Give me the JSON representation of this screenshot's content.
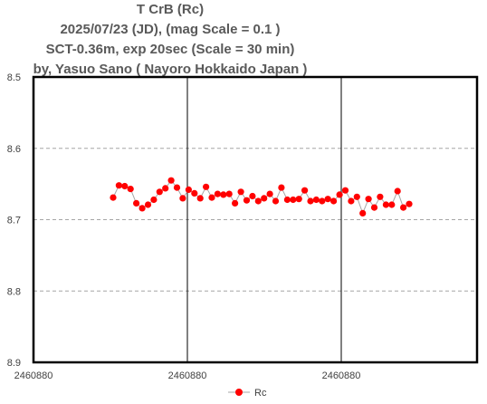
{
  "header": {
    "line1": "T CrB  (Rc)",
    "line2": "2025/07/23 (JD),   (mag Scale = 0.1 )",
    "line3": "SCT-0.36m, exp 20sec (Scale = 30 min)",
    "line4": "by, Yasuo Sano ( Nayoro Hokkaido Japan )"
  },
  "chart_data": {
    "type": "line",
    "title": "T CrB  (Rc)",
    "xlabel": "",
    "ylabel": "",
    "y_inverted": true,
    "ylim": [
      8.5,
      8.9
    ],
    "y_ticks": [
      "8.5",
      "8.6",
      "8.7",
      "8.8",
      "8.9"
    ],
    "x_ticks": [
      "2460880",
      "2460880",
      "2460880"
    ],
    "grid": true,
    "legend_position": "bottom",
    "marker_color": "#ff0000",
    "line_color": "#a6a6a6",
    "series": [
      {
        "name": "Rc",
        "y": [
          8.669,
          8.652,
          8.653,
          8.657,
          8.677,
          8.684,
          8.679,
          8.672,
          8.661,
          8.656,
          8.645,
          8.655,
          8.67,
          8.658,
          8.663,
          8.67,
          8.654,
          8.669,
          8.664,
          8.665,
          8.664,
          8.677,
          8.661,
          8.673,
          8.667,
          8.674,
          8.67,
          8.664,
          8.674,
          8.655,
          8.672,
          8.672,
          8.671,
          8.659,
          8.674,
          8.672,
          8.674,
          8.671,
          8.674,
          8.665,
          8.659,
          8.674,
          8.668,
          8.691,
          8.671,
          8.683,
          8.668,
          8.679,
          8.679,
          8.66,
          8.683,
          8.678
        ]
      }
    ]
  }
}
